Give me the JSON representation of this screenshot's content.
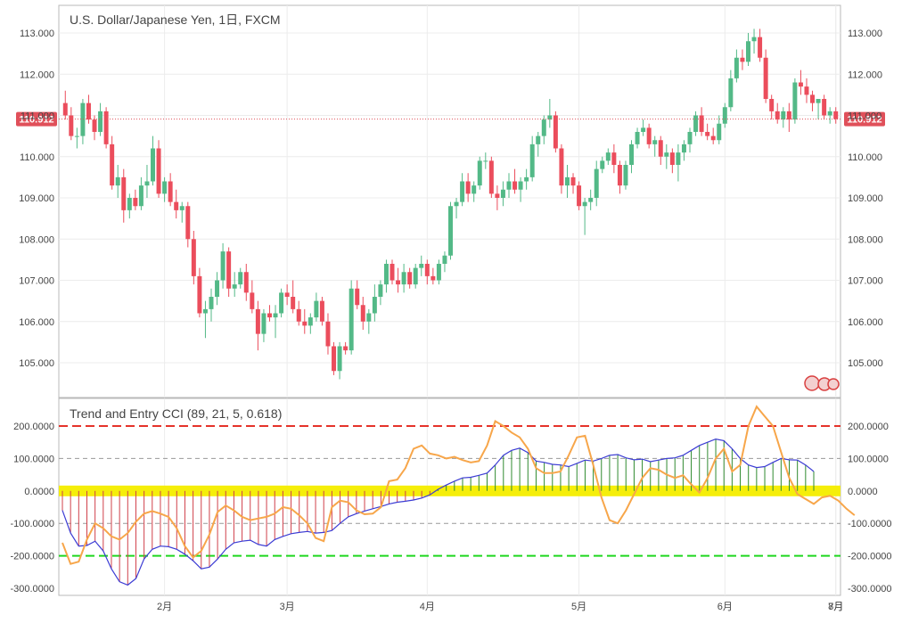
{
  "chart_data": [
    {
      "type": "candlestick",
      "title": "U.S. Dollar/Japanese Yen, 1日, FXCM",
      "ylim": [
        104.3,
        113.5
      ],
      "y_ticks": [
        "113.000",
        "112.000",
        "111.000",
        "110.000",
        "109.000",
        "108.000",
        "107.000",
        "106.000",
        "105.000"
      ],
      "x_ticks": [
        "2月",
        "3月",
        "4月",
        "5月",
        "6月",
        "7月",
        "8月"
      ],
      "current_price": "110.912",
      "grid": true,
      "colors": {
        "up": "#53b987",
        "down": "#eb4d5c",
        "price_line": "#e0505a"
      },
      "candles": [
        {
          "o": 111.3,
          "h": 111.6,
          "l": 110.9,
          "c": 111.0
        },
        {
          "o": 111.0,
          "h": 111.2,
          "l": 110.4,
          "c": 110.5
        },
        {
          "o": 110.5,
          "h": 110.7,
          "l": 110.2,
          "c": 110.5
        },
        {
          "o": 110.5,
          "h": 111.4,
          "l": 110.3,
          "c": 111.3
        },
        {
          "o": 111.3,
          "h": 111.5,
          "l": 110.8,
          "c": 110.9
        },
        {
          "o": 110.9,
          "h": 111.0,
          "l": 110.4,
          "c": 110.6
        },
        {
          "o": 110.6,
          "h": 111.3,
          "l": 110.5,
          "c": 111.1
        },
        {
          "o": 111.1,
          "h": 111.2,
          "l": 110.2,
          "c": 110.3
        },
        {
          "o": 110.3,
          "h": 110.5,
          "l": 109.2,
          "c": 109.3
        },
        {
          "o": 109.3,
          "h": 109.8,
          "l": 109.0,
          "c": 109.5
        },
        {
          "o": 109.5,
          "h": 109.7,
          "l": 108.4,
          "c": 108.7
        },
        {
          "o": 108.7,
          "h": 109.1,
          "l": 108.5,
          "c": 109.0
        },
        {
          "o": 109.0,
          "h": 109.2,
          "l": 108.7,
          "c": 108.8
        },
        {
          "o": 108.8,
          "h": 109.5,
          "l": 108.7,
          "c": 109.3
        },
        {
          "o": 109.3,
          "h": 109.8,
          "l": 109.0,
          "c": 109.4
        },
        {
          "o": 109.4,
          "h": 110.5,
          "l": 109.3,
          "c": 110.2
        },
        {
          "o": 110.2,
          "h": 110.4,
          "l": 109.0,
          "c": 109.1
        },
        {
          "o": 109.1,
          "h": 109.5,
          "l": 108.9,
          "c": 109.4
        },
        {
          "o": 109.4,
          "h": 109.6,
          "l": 108.8,
          "c": 108.9
        },
        {
          "o": 108.9,
          "h": 109.2,
          "l": 108.5,
          "c": 108.7
        },
        {
          "o": 108.7,
          "h": 108.9,
          "l": 108.4,
          "c": 108.8
        },
        {
          "o": 108.8,
          "h": 108.9,
          "l": 107.8,
          "c": 108.0
        },
        {
          "o": 108.0,
          "h": 108.2,
          "l": 106.9,
          "c": 107.1
        },
        {
          "o": 107.1,
          "h": 107.3,
          "l": 106.1,
          "c": 106.2
        },
        {
          "o": 106.2,
          "h": 106.5,
          "l": 105.6,
          "c": 106.3
        },
        {
          "o": 106.3,
          "h": 106.8,
          "l": 106.0,
          "c": 106.6
        },
        {
          "o": 106.6,
          "h": 107.2,
          "l": 106.4,
          "c": 107.0
        },
        {
          "o": 107.0,
          "h": 107.9,
          "l": 106.8,
          "c": 107.7
        },
        {
          "o": 107.7,
          "h": 107.8,
          "l": 106.6,
          "c": 106.8
        },
        {
          "o": 106.8,
          "h": 107.2,
          "l": 106.6,
          "c": 106.9
        },
        {
          "o": 106.9,
          "h": 107.3,
          "l": 106.8,
          "c": 107.2
        },
        {
          "o": 107.2,
          "h": 107.4,
          "l": 106.5,
          "c": 106.7
        },
        {
          "o": 106.7,
          "h": 107.0,
          "l": 106.2,
          "c": 106.3
        },
        {
          "o": 106.3,
          "h": 106.5,
          "l": 105.3,
          "c": 105.7
        },
        {
          "o": 105.7,
          "h": 106.3,
          "l": 105.5,
          "c": 106.2
        },
        {
          "o": 106.2,
          "h": 106.4,
          "l": 106.0,
          "c": 106.1
        },
        {
          "o": 106.1,
          "h": 106.4,
          "l": 105.6,
          "c": 106.2
        },
        {
          "o": 106.2,
          "h": 106.8,
          "l": 106.1,
          "c": 106.7
        },
        {
          "o": 106.7,
          "h": 106.9,
          "l": 106.4,
          "c": 106.6
        },
        {
          "o": 106.6,
          "h": 107.0,
          "l": 106.2,
          "c": 106.3
        },
        {
          "o": 106.3,
          "h": 106.5,
          "l": 105.9,
          "c": 106.0
        },
        {
          "o": 106.0,
          "h": 106.3,
          "l": 105.7,
          "c": 105.9
        },
        {
          "o": 105.9,
          "h": 106.2,
          "l": 105.7,
          "c": 106.1
        },
        {
          "o": 106.1,
          "h": 106.7,
          "l": 106.0,
          "c": 106.5
        },
        {
          "o": 106.5,
          "h": 106.6,
          "l": 105.9,
          "c": 106.0
        },
        {
          "o": 106.0,
          "h": 106.2,
          "l": 105.2,
          "c": 105.4
        },
        {
          "o": 105.4,
          "h": 105.5,
          "l": 104.7,
          "c": 104.8
        },
        {
          "o": 104.8,
          "h": 105.5,
          "l": 104.6,
          "c": 105.4
        },
        {
          "o": 105.4,
          "h": 105.5,
          "l": 105.2,
          "c": 105.3
        },
        {
          "o": 105.3,
          "h": 107.0,
          "l": 105.2,
          "c": 106.8
        },
        {
          "o": 106.8,
          "h": 107.0,
          "l": 106.3,
          "c": 106.4
        },
        {
          "o": 106.4,
          "h": 106.6,
          "l": 105.8,
          "c": 106.0
        },
        {
          "o": 106.0,
          "h": 106.3,
          "l": 105.7,
          "c": 106.2
        },
        {
          "o": 106.2,
          "h": 106.9,
          "l": 106.0,
          "c": 106.6
        },
        {
          "o": 106.6,
          "h": 107.0,
          "l": 106.4,
          "c": 106.9
        },
        {
          "o": 106.9,
          "h": 107.5,
          "l": 106.7,
          "c": 107.4
        },
        {
          "o": 107.4,
          "h": 107.5,
          "l": 106.9,
          "c": 107.0
        },
        {
          "o": 107.0,
          "h": 107.3,
          "l": 106.7,
          "c": 106.9
        },
        {
          "o": 106.9,
          "h": 107.4,
          "l": 106.7,
          "c": 107.2
        },
        {
          "o": 107.2,
          "h": 107.3,
          "l": 106.8,
          "c": 106.9
        },
        {
          "o": 106.9,
          "h": 107.4,
          "l": 106.8,
          "c": 107.3
        },
        {
          "o": 107.3,
          "h": 107.6,
          "l": 107.1,
          "c": 107.4
        },
        {
          "o": 107.4,
          "h": 107.5,
          "l": 106.9,
          "c": 107.1
        },
        {
          "o": 107.1,
          "h": 107.3,
          "l": 106.9,
          "c": 107.0
        },
        {
          "o": 107.0,
          "h": 107.5,
          "l": 106.9,
          "c": 107.4
        },
        {
          "o": 107.4,
          "h": 107.7,
          "l": 107.2,
          "c": 107.6
        },
        {
          "o": 107.6,
          "h": 108.9,
          "l": 107.5,
          "c": 108.8
        },
        {
          "o": 108.8,
          "h": 109.0,
          "l": 108.5,
          "c": 108.9
        },
        {
          "o": 108.9,
          "h": 109.6,
          "l": 108.8,
          "c": 109.4
        },
        {
          "o": 109.4,
          "h": 109.6,
          "l": 108.9,
          "c": 109.1
        },
        {
          "o": 109.1,
          "h": 109.4,
          "l": 108.9,
          "c": 109.3
        },
        {
          "o": 109.3,
          "h": 110.0,
          "l": 109.2,
          "c": 109.9
        },
        {
          "o": 109.9,
          "h": 110.1,
          "l": 109.7,
          "c": 109.9
        },
        {
          "o": 109.9,
          "h": 110.0,
          "l": 109.0,
          "c": 109.1
        },
        {
          "o": 109.1,
          "h": 109.3,
          "l": 108.7,
          "c": 109.0
        },
        {
          "o": 109.0,
          "h": 109.4,
          "l": 108.8,
          "c": 109.2
        },
        {
          "o": 109.2,
          "h": 109.6,
          "l": 109.0,
          "c": 109.4
        },
        {
          "o": 109.4,
          "h": 109.7,
          "l": 109.1,
          "c": 109.2
        },
        {
          "o": 109.2,
          "h": 109.5,
          "l": 108.9,
          "c": 109.4
        },
        {
          "o": 109.4,
          "h": 109.7,
          "l": 109.2,
          "c": 109.5
        },
        {
          "o": 109.5,
          "h": 110.5,
          "l": 109.4,
          "c": 110.3
        },
        {
          "o": 110.3,
          "h": 110.6,
          "l": 110.0,
          "c": 110.5
        },
        {
          "o": 110.5,
          "h": 111.0,
          "l": 110.3,
          "c": 110.9
        },
        {
          "o": 110.9,
          "h": 111.4,
          "l": 110.7,
          "c": 111.0
        },
        {
          "o": 111.0,
          "h": 111.1,
          "l": 110.1,
          "c": 110.2
        },
        {
          "o": 110.2,
          "h": 110.3,
          "l": 109.1,
          "c": 109.3
        },
        {
          "o": 109.3,
          "h": 109.8,
          "l": 109.0,
          "c": 109.5
        },
        {
          "o": 109.5,
          "h": 109.6,
          "l": 109.1,
          "c": 109.3
        },
        {
          "o": 109.3,
          "h": 109.4,
          "l": 108.7,
          "c": 108.8
        },
        {
          "o": 108.8,
          "h": 109.0,
          "l": 108.1,
          "c": 108.9
        },
        {
          "o": 108.9,
          "h": 109.2,
          "l": 108.7,
          "c": 109.0
        },
        {
          "o": 109.0,
          "h": 109.9,
          "l": 108.8,
          "c": 109.7
        },
        {
          "o": 109.7,
          "h": 110.0,
          "l": 109.6,
          "c": 109.9
        },
        {
          "o": 109.9,
          "h": 110.2,
          "l": 109.8,
          "c": 110.1
        },
        {
          "o": 110.1,
          "h": 110.3,
          "l": 109.6,
          "c": 109.8
        },
        {
          "o": 109.8,
          "h": 109.9,
          "l": 109.1,
          "c": 109.3
        },
        {
          "o": 109.3,
          "h": 109.9,
          "l": 109.2,
          "c": 109.8
        },
        {
          "o": 109.8,
          "h": 110.4,
          "l": 109.6,
          "c": 110.3
        },
        {
          "o": 110.3,
          "h": 110.7,
          "l": 110.2,
          "c": 110.6
        },
        {
          "o": 110.6,
          "h": 110.9,
          "l": 110.5,
          "c": 110.7
        },
        {
          "o": 110.7,
          "h": 110.8,
          "l": 110.2,
          "c": 110.3
        },
        {
          "o": 110.3,
          "h": 110.5,
          "l": 110.0,
          "c": 110.4
        },
        {
          "o": 110.4,
          "h": 110.5,
          "l": 109.8,
          "c": 110.0
        },
        {
          "o": 110.0,
          "h": 110.3,
          "l": 109.7,
          "c": 110.1
        },
        {
          "o": 110.1,
          "h": 110.2,
          "l": 109.6,
          "c": 109.8
        },
        {
          "o": 109.8,
          "h": 110.3,
          "l": 109.4,
          "c": 110.1
        },
        {
          "o": 110.1,
          "h": 110.4,
          "l": 109.9,
          "c": 110.3
        },
        {
          "o": 110.3,
          "h": 110.7,
          "l": 110.1,
          "c": 110.6
        },
        {
          "o": 110.6,
          "h": 111.1,
          "l": 110.5,
          "c": 111.0
        },
        {
          "o": 111.0,
          "h": 111.2,
          "l": 110.5,
          "c": 110.6
        },
        {
          "o": 110.6,
          "h": 110.8,
          "l": 110.4,
          "c": 110.5
        },
        {
          "o": 110.5,
          "h": 110.7,
          "l": 110.3,
          "c": 110.4
        },
        {
          "o": 110.4,
          "h": 111.0,
          "l": 110.3,
          "c": 110.8
        },
        {
          "o": 110.8,
          "h": 111.3,
          "l": 110.7,
          "c": 111.2
        },
        {
          "o": 111.2,
          "h": 112.1,
          "l": 111.1,
          "c": 111.9
        },
        {
          "o": 111.9,
          "h": 112.6,
          "l": 111.8,
          "c": 112.4
        },
        {
          "o": 112.4,
          "h": 112.6,
          "l": 112.1,
          "c": 112.3
        },
        {
          "o": 112.3,
          "h": 113.0,
          "l": 112.2,
          "c": 112.8
        },
        {
          "o": 112.8,
          "h": 113.1,
          "l": 112.5,
          "c": 112.9
        },
        {
          "o": 112.9,
          "h": 113.1,
          "l": 112.3,
          "c": 112.4
        },
        {
          "o": 112.4,
          "h": 112.6,
          "l": 111.3,
          "c": 111.4
        },
        {
          "o": 111.4,
          "h": 111.5,
          "l": 110.9,
          "c": 111.1
        },
        {
          "o": 111.1,
          "h": 111.3,
          "l": 110.8,
          "c": 110.9
        },
        {
          "o": 110.9,
          "h": 111.2,
          "l": 110.7,
          "c": 111.1
        },
        {
          "o": 111.1,
          "h": 111.3,
          "l": 110.6,
          "c": 110.9
        },
        {
          "o": 110.9,
          "h": 111.9,
          "l": 110.8,
          "c": 111.8
        },
        {
          "o": 111.8,
          "h": 112.1,
          "l": 111.5,
          "c": 111.7
        },
        {
          "o": 111.7,
          "h": 111.9,
          "l": 111.3,
          "c": 111.5
        },
        {
          "o": 111.5,
          "h": 111.6,
          "l": 111.1,
          "c": 111.3
        },
        {
          "o": 111.3,
          "h": 111.4,
          "l": 110.9,
          "c": 111.4
        },
        {
          "o": 111.4,
          "h": 111.5,
          "l": 110.9,
          "c": 111.0
        },
        {
          "o": 111.0,
          "h": 111.2,
          "l": 110.8,
          "c": 111.1
        },
        {
          "o": 111.1,
          "h": 111.2,
          "l": 110.8,
          "c": 110.91
        }
      ]
    },
    {
      "type": "line",
      "title": "Trend and Entry CCI (89, 21, 5, 0.618)",
      "ylim": [
        -320,
        230
      ],
      "y_ticks": [
        "200.0000",
        "100.0000",
        "0.0000",
        "-100.0000",
        "-200.0000",
        "-300.0000"
      ],
      "left_y_ticks": [
        "200.0000",
        "100.0000",
        "0.0000",
        "-100.0000",
        "-200.0000",
        "-300.0000"
      ],
      "levels": [
        {
          "value": 200,
          "color": "#e5332a"
        },
        {
          "value": 100,
          "color": "#999999"
        },
        {
          "value": 0,
          "color": "#f5ee0a"
        },
        {
          "value": -100,
          "color": "#999999"
        },
        {
          "value": -200,
          "color": "#1fd61f"
        }
      ],
      "series": [
        {
          "color": "#3c3cd4",
          "values": [
            -60,
            -130,
            -170,
            -168,
            -155,
            -185,
            -240,
            -280,
            -290,
            -270,
            -210,
            -180,
            -170,
            -172,
            -180,
            -195,
            -215,
            -240,
            -235,
            -210,
            -180,
            -160,
            -155,
            -152,
            -165,
            -170,
            -150,
            -140,
            -132,
            -128,
            -125,
            -130,
            -128,
            -122,
            -100,
            -80,
            -70,
            -62,
            -55,
            -48,
            -40,
            -35,
            -32,
            -28,
            -22,
            -12,
            5,
            18,
            30,
            40,
            42,
            48,
            55,
            80,
            110,
            125,
            132,
            118,
            92,
            88,
            82,
            80,
            75,
            85,
            95,
            92,
            100,
            110,
            112,
            102,
            96,
            98,
            90,
            95,
            100,
            102,
            110,
            125,
            140,
            150,
            160,
            155,
            130,
            100,
            80,
            72,
            75,
            88,
            100,
            96,
            95,
            80,
            60
          ]
        },
        {
          "color": "#f7a64a",
          "values": [
            -160,
            -225,
            -218,
            -150,
            -100,
            -115,
            -140,
            -150,
            -130,
            -95,
            -70,
            -62,
            -70,
            -80,
            -115,
            -170,
            -205,
            -185,
            -135,
            -65,
            -45,
            -60,
            -80,
            -90,
            -85,
            -80,
            -70,
            -50,
            -55,
            -75,
            -100,
            -145,
            -155,
            -50,
            -30,
            -35,
            -60,
            -72,
            -70,
            -50,
            30,
            35,
            70,
            130,
            140,
            115,
            110,
            100,
            105,
            95,
            88,
            92,
            140,
            215,
            200,
            180,
            165,
            130,
            70,
            55,
            55,
            60,
            110,
            165,
            170,
            80,
            -20,
            -90,
            -100,
            -60,
            -10,
            40,
            70,
            65,
            50,
            40,
            48,
            20,
            -5,
            40,
            100,
            130,
            60,
            80,
            200,
            260,
            230,
            200,
            120,
            40,
            -10,
            -25,
            -40,
            -20,
            -15,
            -30,
            -55,
            -75
          ]
        }
      ],
      "histogram": {
        "up_color": "#2f8a2f",
        "down_color": "#d0404a"
      }
    }
  ]
}
